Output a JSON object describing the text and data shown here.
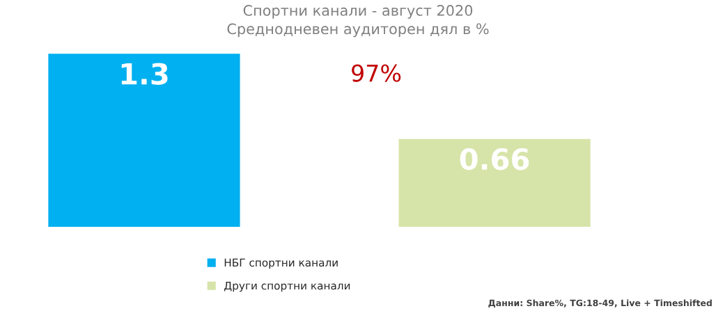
{
  "chart_data": {
    "type": "bar",
    "title": "Спортни канали - август 2020\nСреднодневен аудиторен дял в %",
    "categories": [
      null,
      null
    ],
    "series": [
      {
        "name": "НБГ спортни канали",
        "color": "#00b0f0",
        "values": [
          1.3,
          null
        ]
      },
      {
        "name": "Други спортни канали",
        "color": "#d7e4a9",
        "values": [
          null,
          0.66
        ]
      }
    ],
    "stacked": true,
    "data_labels": true,
    "legend": "bottom",
    "annotations": [
      "97%",
      "Данни: Share%, TG:18-49, Live + Timeshifted"
    ]
  }
}
